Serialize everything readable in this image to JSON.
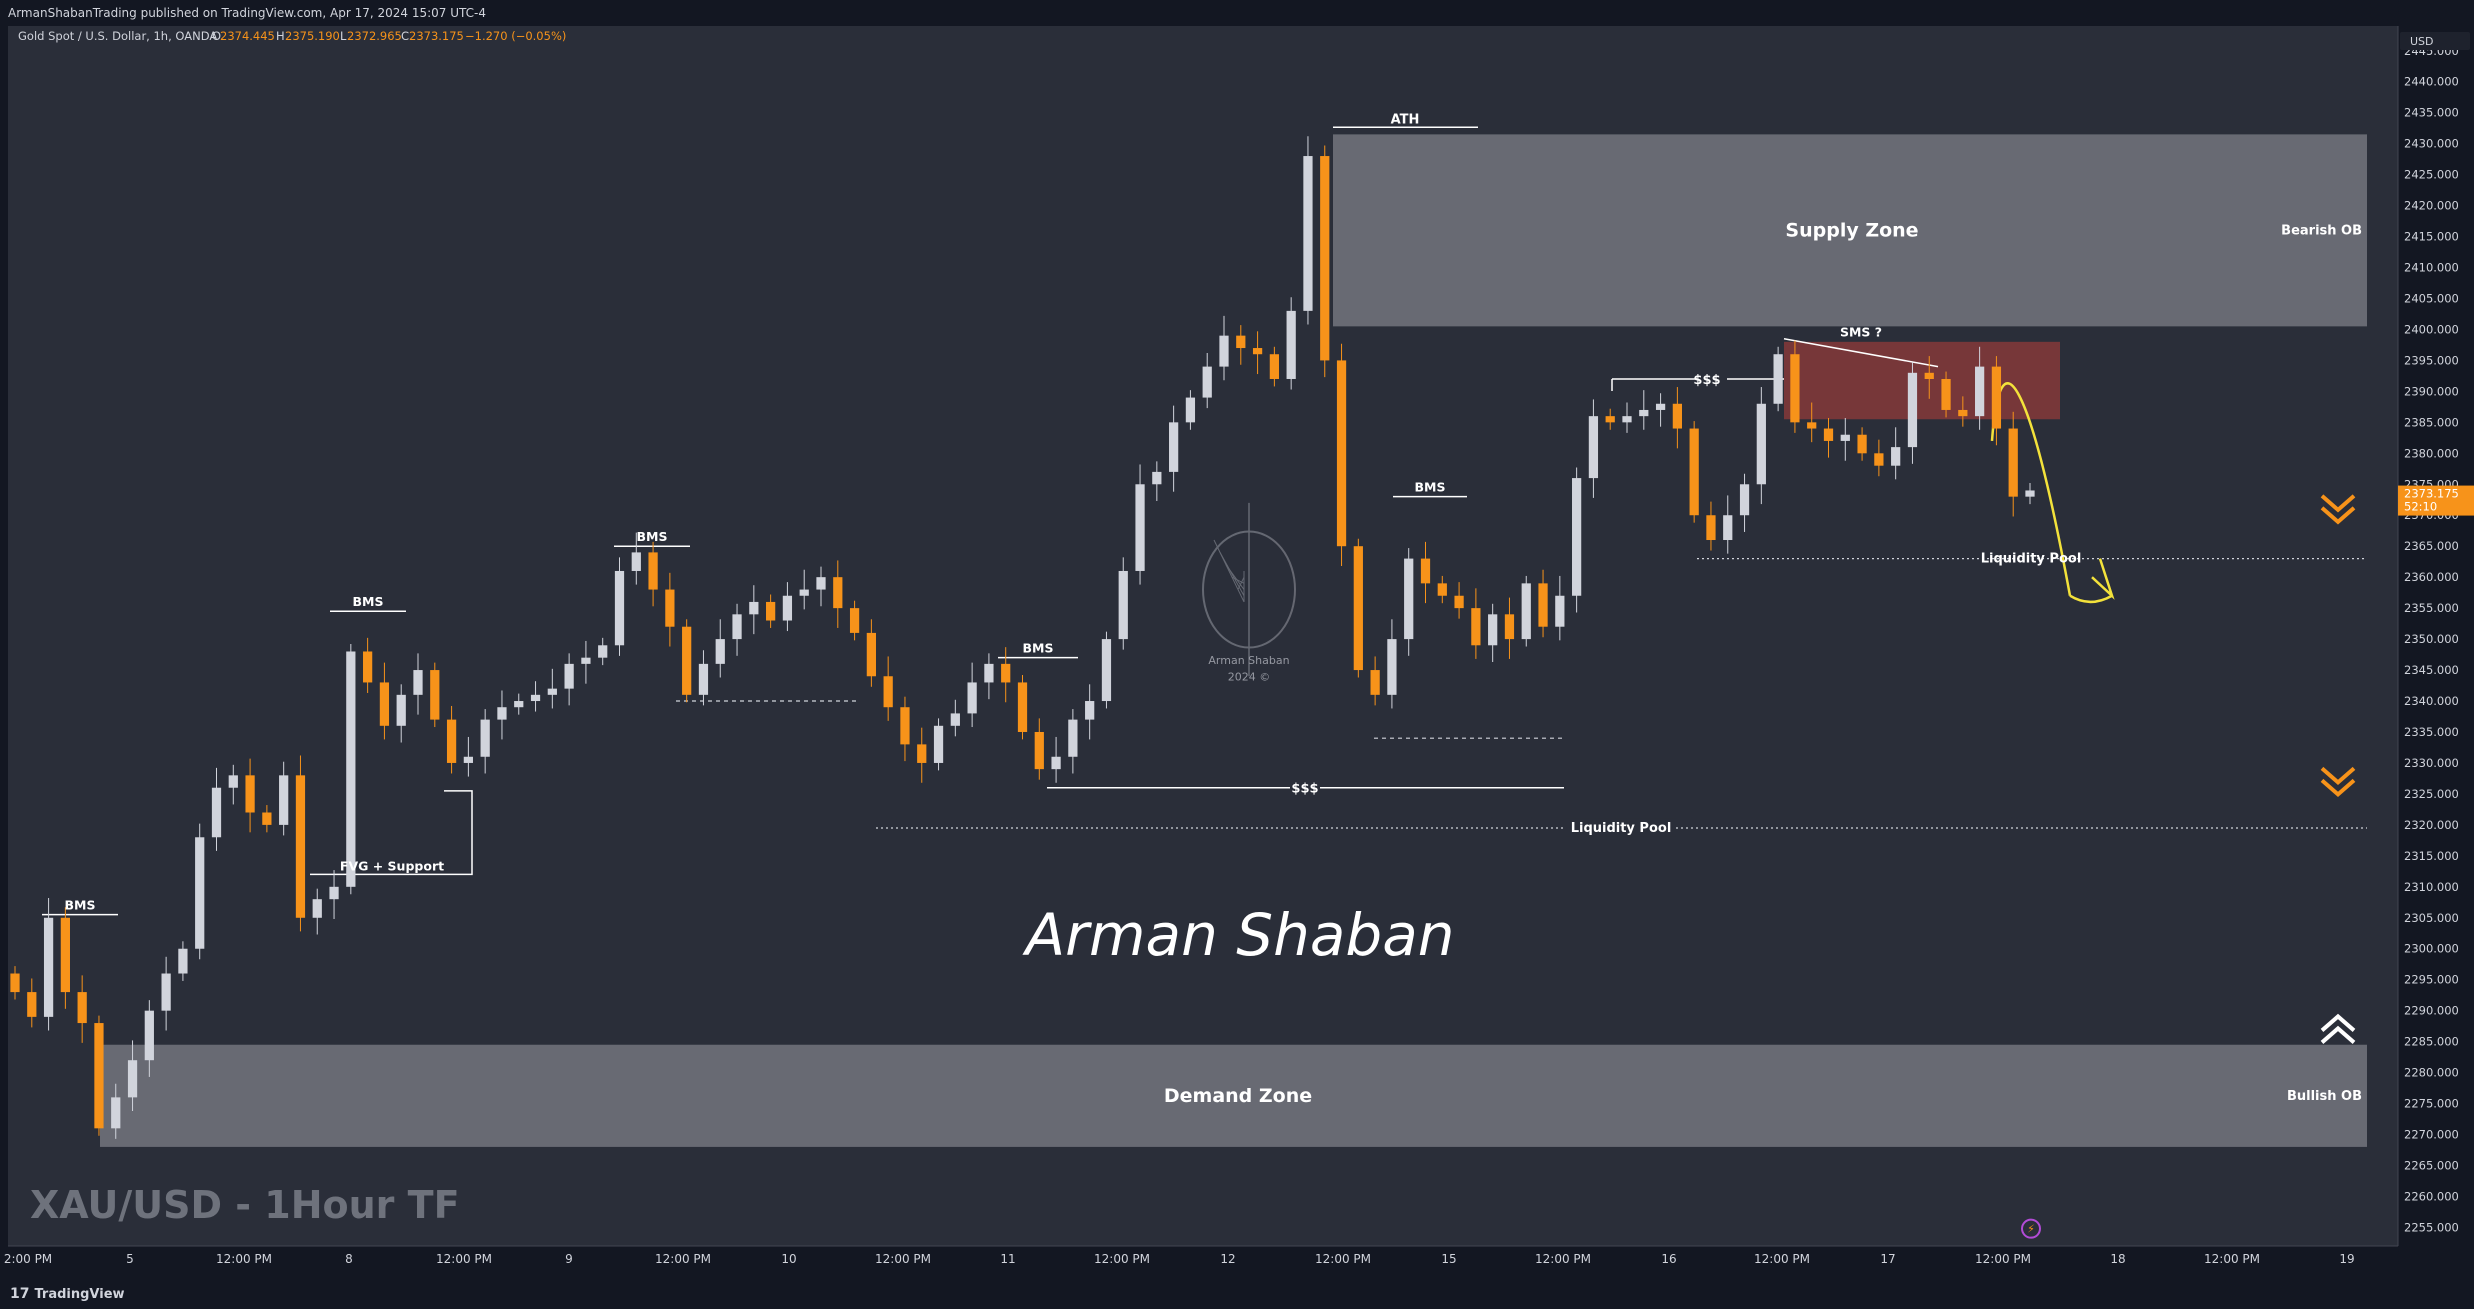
{
  "header": {
    "published_line": "ArmanShabanTrading published on TradingView.com, Apr 17, 2024 15:07 UTC-4",
    "symbol_line": "Gold Spot / U.S. Dollar, 1h, OANDA",
    "ohlc": {
      "o_label": "O",
      "o_value": "2374.445",
      "h_label": "H",
      "h_value": "2375.190",
      "l_label": "L",
      "l_value": "2372.965",
      "c_label": "C",
      "c_value": "2373.175",
      "change": "−1.270 (−0.05%)"
    }
  },
  "footer": {
    "brand": "TradingView",
    "brand_glyph": "17"
  },
  "currency": "USD",
  "price_badge": {
    "price": "2373.175",
    "countdown": "52:10"
  },
  "colors": {
    "background": "#2a2e39",
    "panel": "#131722",
    "up": "#d1d4dc",
    "down": "#f7931a",
    "zone": "#6b6e76",
    "bearish_block": "#8b3a3a",
    "projection": "#f3e23b",
    "text": "#d1d4dc"
  },
  "annotations": {
    "supply_zone": "Supply Zone",
    "demand_zone": "Demand Zone",
    "bearish_ob": "Bearish OB",
    "bullish_ob": "Bullish OB",
    "ath": "ATH",
    "bms": "BMS",
    "fvg_support": "FVG + Support",
    "liquidity_pool": "Liquidity Pool",
    "dollars": "$$$",
    "sms": "SMS ?",
    "title": "XAU/USD - 1Hour TF",
    "signature": "Arman Shaban",
    "watermark_name": "Arman Shaban",
    "watermark_year": "2024 ©"
  },
  "chart_data": {
    "type": "candlestick",
    "title": "XAU/USD - 1Hour TF",
    "instrument": "Gold Spot / U.S. Dollar",
    "timeframe": "1h",
    "broker": "OANDA",
    "y_axis": {
      "ylim": [
        2252,
        2449
      ],
      "ticks": [
        2445,
        2440,
        2435,
        2430,
        2425,
        2420,
        2415,
        2410,
        2405,
        2400,
        2395,
        2390,
        2385,
        2380,
        2375,
        2370,
        2365,
        2360,
        2355,
        2350,
        2345,
        2340,
        2335,
        2330,
        2325,
        2320,
        2315,
        2310,
        2305,
        2300,
        2295,
        2290,
        2285,
        2280,
        2275,
        2270,
        2265,
        2260,
        2255
      ],
      "tick_format": "0.000"
    },
    "x_axis": {
      "labels": [
        "2:00 PM",
        "5",
        "12:00 PM",
        "8",
        "12:00 PM",
        "9",
        "12:00 PM",
        "10",
        "12:00 PM",
        "11",
        "12:00 PM",
        "12",
        "12:00 PM",
        "15",
        "12:00 PM",
        "16",
        "12:00 PM",
        "17",
        "12:00 PM",
        "18",
        "12:00 PM",
        "19"
      ]
    },
    "zones": [
      {
        "label": "Supply Zone",
        "side_label": "Bearish OB",
        "low": 2400.5,
        "high": 2431.5
      },
      {
        "label": "Demand Zone",
        "side_label": "Bullish OB",
        "low": 2268,
        "high": 2284.5
      },
      {
        "label": "SMS ?",
        "low": 2385.5,
        "high": 2398
      }
    ],
    "levels": [
      {
        "label": "Liquidity Pool",
        "price": 2363
      },
      {
        "label": "Liquidity Pool",
        "price": 2319.5
      },
      {
        "label": "$$$",
        "price": 2392
      },
      {
        "label": "$$$",
        "price": 2326
      },
      {
        "label": "ATH",
        "price": 2432
      }
    ],
    "candle_closes": [
      2293,
      2289,
      2305,
      2293,
      2288,
      2271,
      2276,
      2282,
      2290,
      2296,
      2300,
      2318,
      2326,
      2328,
      2322,
      2320,
      2328,
      2305,
      2308,
      2310,
      2348,
      2343,
      2336,
      2341,
      2345,
      2337,
      2330,
      2331,
      2337,
      2339,
      2340,
      2341,
      2342,
      2346,
      2347,
      2349,
      2361,
      2364,
      2358,
      2352,
      2341,
      2346,
      2350,
      2354,
      2356,
      2353,
      2357,
      2358,
      2360,
      2355,
      2351,
      2344,
      2339,
      2333,
      2330,
      2336,
      2338,
      2343,
      2346,
      2343,
      2335,
      2329,
      2331,
      2337,
      2340,
      2350,
      2361,
      2375,
      2377,
      2385,
      2389,
      2394,
      2399,
      2397,
      2396,
      2392,
      2403,
      2428,
      2395,
      2365,
      2345,
      2341,
      2350,
      2363,
      2359,
      2357,
      2355,
      2349,
      2354,
      2350,
      2359,
      2352,
      2357,
      2376,
      2386,
      2385,
      2386,
      2387,
      2388,
      2384,
      2370,
      2366,
      2370,
      2375,
      2388,
      2396,
      2385,
      2384,
      2382,
      2383,
      2380,
      2378,
      2381,
      2393,
      2392,
      2387,
      2386,
      2394,
      2384,
      2373,
      2374
    ]
  }
}
